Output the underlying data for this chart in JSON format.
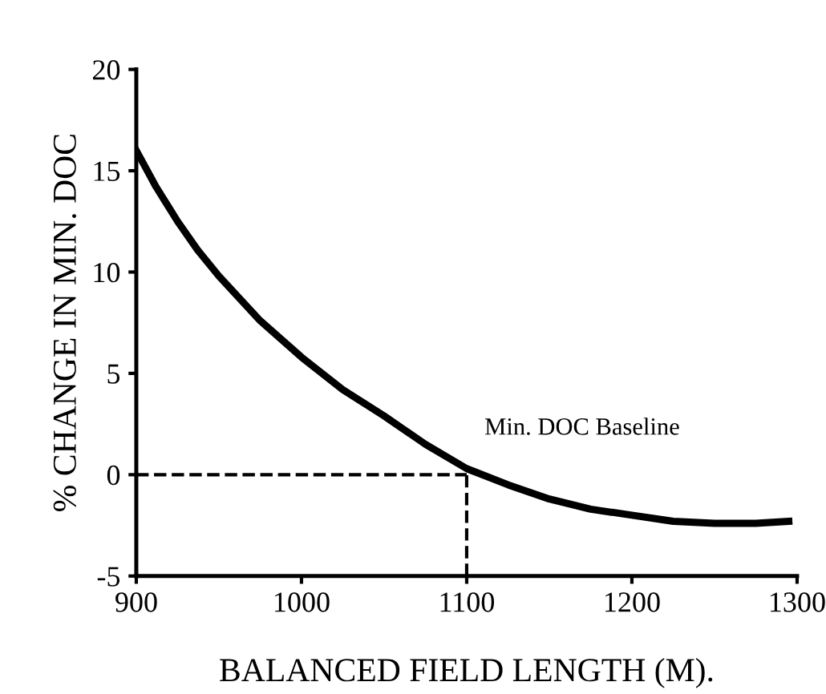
{
  "chart_data": {
    "type": "line",
    "xlabel": "BALANCED FIELD LENGTH (M).",
    "ylabel": "% CHANGE IN MIN. DOC",
    "x": [
      900,
      912,
      925,
      937,
      950,
      975,
      1000,
      1025,
      1050,
      1075,
      1100,
      1125,
      1150,
      1175,
      1200,
      1225,
      1250,
      1275,
      1295
    ],
    "series": [
      {
        "color": "#000000",
        "values": [
          16,
          14.2,
          12.5,
          11.1,
          9.8,
          7.6,
          5.8,
          4.2,
          2.9,
          1.5,
          0.3,
          -0.5,
          -1.2,
          -1.7,
          -2.0,
          -2.3,
          -2.4,
          -2.4,
          -2.3
        ]
      }
    ],
    "xlim": [
      900,
      1300
    ],
    "ylim": [
      -5,
      20
    ],
    "xticks": [
      900,
      1000,
      1100,
      1200,
      1300
    ],
    "yticks": [
      -5,
      0,
      5,
      10,
      15,
      20
    ],
    "ref_lines": [
      {
        "axis": "x",
        "value": 1100,
        "line_style": "dashed"
      },
      {
        "axis": "y",
        "value": 0,
        "line_style": "dashed"
      }
    ],
    "annotations": [
      {
        "text": "Min. DOC Baseline",
        "x": 1100,
        "y": 0
      }
    ],
    "grid": false,
    "legend": false,
    "marker": "none",
    "line_style": "solid"
  }
}
